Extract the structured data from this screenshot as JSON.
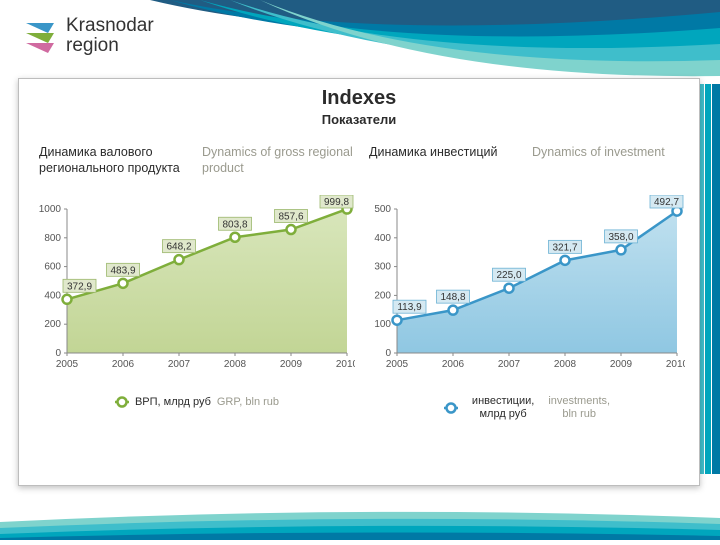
{
  "header": {
    "brand_line1": "Krasnodar",
    "brand_line2": "region",
    "ribbon_colors": [
      "#00a6bd",
      "#0079a5",
      "#3fbecb",
      "#7fd3cd",
      "#205c83"
    ]
  },
  "card": {
    "title": "Indexes",
    "subtitle": "Показатели"
  },
  "chart_grp": {
    "type": "area-line",
    "title_ru": "Динамика валового регионального продукта",
    "title_en": "Dynamics of gross regional product",
    "x_categories": [
      "2005",
      "2006",
      "2007",
      "2008",
      "2009",
      "2010"
    ],
    "values": [
      372.9,
      483.9,
      648.2,
      803.8,
      857.6,
      999.8
    ],
    "value_labels": [
      "372,9",
      "483,9",
      "648,2",
      "803,8",
      "857,6",
      "999,8"
    ],
    "ylim": [
      0,
      1000
    ],
    "ytick_step": 200,
    "line_color": "#7fae3b",
    "fill_color_top": "#d8e6bb",
    "fill_color_bottom": "#c2d595",
    "marker_ring": "#7fae3b",
    "marker_fill": "#ffffff",
    "marker_radius": 4.5,
    "line_width": 2.5,
    "value_box_bg": "#e0e8cc",
    "value_box_border": "#9cb86d",
    "axis_color": "#888888",
    "grid_color": "#d4d4d4",
    "tick_fontsize": 10,
    "label_fontsize": 10,
    "legend_ru": "ВРП, млрд руб",
    "legend_en": "GRP, bln rub"
  },
  "chart_inv": {
    "type": "area-line",
    "title_ru": "Динамика инвестиций",
    "title_en": "Dynamics of investment",
    "x_categories": [
      "2005",
      "2006",
      "2007",
      "2008",
      "2009",
      "2010"
    ],
    "values": [
      113.9,
      148.8,
      225.0,
      321.7,
      358.0,
      492.7
    ],
    "value_labels": [
      "113,9",
      "148,8",
      "225,0",
      "321,7",
      "358,0",
      "492,7"
    ],
    "ylim": [
      0,
      500
    ],
    "ytick_step": 100,
    "line_color": "#3a96c8",
    "fill_color_top": "#bfe0ef",
    "fill_color_bottom": "#8fc7e2",
    "marker_ring": "#3a96c8",
    "marker_fill": "#ffffff",
    "marker_radius": 4.5,
    "line_width": 2.5,
    "value_box_bg": "#d5e9f2",
    "value_box_border": "#6cb2d4",
    "axis_color": "#888888",
    "grid_color": "#d4d4d4",
    "tick_fontsize": 10,
    "label_fontsize": 10,
    "legend_ru_l1": "инвестиции,",
    "legend_ru_l2": "млрд руб",
    "legend_en_l1": "investments,",
    "legend_en_l2": "bln rub"
  }
}
